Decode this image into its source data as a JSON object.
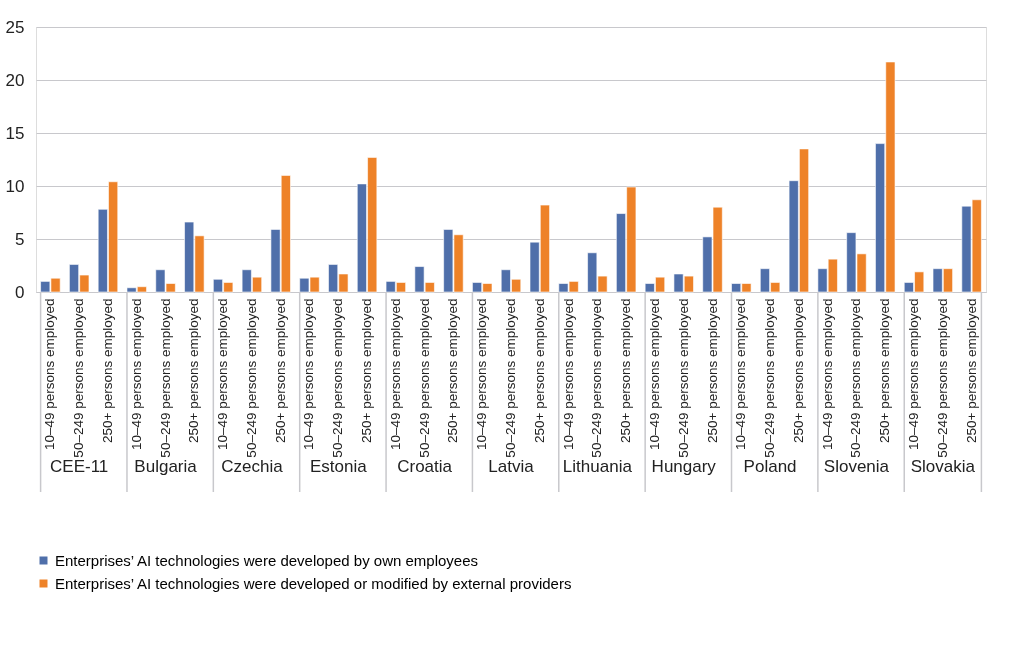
{
  "chart_data": {
    "type": "bar",
    "categories": [
      "10–49 persons employed",
      "50–249 persons employed",
      "250+ persons employed",
      "10–49 persons employed",
      "50–249 persons employed",
      "250+ persons employed",
      "10–49 persons employed",
      "50–249 persons employed",
      "250+ persons employed",
      "10–49 persons employed",
      "50–249 persons employed",
      "250+ persons employed",
      "10–49 persons employed",
      "50–249 persons employed",
      "250+ persons employed",
      "10–49 persons employed",
      "50–249 persons employed",
      "250+ persons employed",
      "10–49 persons employed",
      "50–249 persons employed",
      "250+ persons employed",
      "10–49 persons employed",
      "50–249 persons employed",
      "250+ persons employed",
      "10–49 persons employed",
      "50–249 persons employed",
      "250+ persons employed",
      "10–49 persons employed",
      "50–249 persons employed",
      "250+ persons employed",
      "10–49 persons employed",
      "50–249 persons employed",
      "250+ persons employed"
    ],
    "series": [
      {
        "name": "Enterprises’ AI technologies were developed by own employees",
        "color": "#4f6faa",
        "values": [
          1.0,
          2.6,
          7.8,
          0.4,
          2.1,
          6.6,
          1.2,
          2.1,
          5.9,
          1.3,
          2.6,
          10.2,
          1.0,
          2.4,
          5.9,
          0.9,
          2.1,
          4.7,
          0.8,
          3.7,
          7.4,
          0.8,
          1.7,
          5.2,
          0.8,
          2.2,
          10.5,
          2.2,
          5.6,
          14.0,
          0.9,
          2.2,
          8.1
        ]
      },
      {
        "name": "Enterprises’ AI technologies were developed or modified by external providers",
        "color": "#ee8228",
        "values": [
          1.3,
          1.6,
          10.4,
          0.5,
          0.8,
          5.3,
          0.9,
          1.4,
          11.0,
          1.4,
          1.7,
          12.7,
          0.9,
          0.9,
          5.4,
          0.8,
          1.2,
          8.2,
          1.0,
          1.5,
          9.9,
          1.4,
          1.5,
          8.0,
          0.8,
          0.9,
          13.5,
          3.1,
          3.6,
          21.7,
          1.9,
          2.2,
          8.7
        ]
      }
    ],
    "annotations": [
      "CEE-11",
      "Bulgaria",
      "Czechia",
      "Estonia",
      "Croatia",
      "Latvia",
      "Lithuania",
      "Hungary",
      "Poland",
      "Slovenia",
      "Slovakia"
    ],
    "ylim": [
      0,
      25
    ],
    "yticks": [
      0,
      5,
      10,
      15,
      20,
      25
    ],
    "grid": "y",
    "legend": "bottom"
  }
}
